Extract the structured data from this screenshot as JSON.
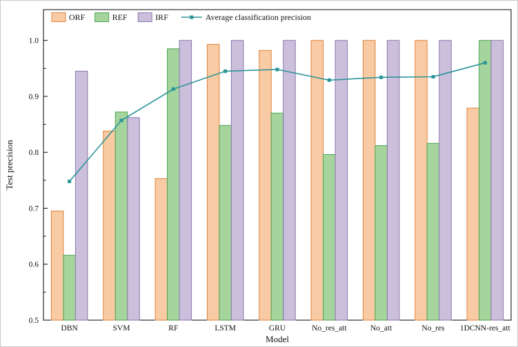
{
  "chart": {
    "xlabel": "Model",
    "ylabel": "Test precision"
  },
  "chart_data": {
    "type": "bar",
    "title": "",
    "xlabel": "Model",
    "ylabel": "Test precision",
    "ylim": [
      0.5,
      1.0
    ],
    "yticks": [
      0.5,
      0.6,
      0.7,
      0.8,
      0.9,
      1.0
    ],
    "ytick_labels": [
      "0.5",
      "0.6",
      "0.7",
      "0.8",
      "0.9",
      "1.0"
    ],
    "minor_tick_step": 0.05,
    "grid": false,
    "legend_position": "top-left",
    "categories": [
      "DBN",
      "SVM",
      "RF",
      "LSTM",
      "GRU",
      "No_res_att",
      "No_att",
      "No_res",
      "1DCNN-res_att"
    ],
    "series": [
      {
        "name": "ORF",
        "type": "bar",
        "fill": "#F8CBA4",
        "stroke": "#E0823D",
        "values": [
          0.695,
          0.838,
          0.753,
          0.993,
          0.982,
          1.0,
          1.0,
          1.0,
          0.879
        ]
      },
      {
        "name": "REF",
        "type": "bar",
        "fill": "#A5D49C",
        "stroke": "#4BA356",
        "values": [
          0.616,
          0.872,
          0.985,
          0.848,
          0.87,
          0.796,
          0.812,
          0.816,
          1.0
        ]
      },
      {
        "name": "IRF",
        "type": "bar",
        "fill": "#CBBFDC",
        "stroke": "#8B76AE",
        "values": [
          0.945,
          0.862,
          1.0,
          1.0,
          1.0,
          1.0,
          1.0,
          1.0,
          1.0
        ]
      },
      {
        "name": "Average classification precision",
        "type": "line",
        "color": "#2B9598",
        "values": [
          0.748,
          0.857,
          0.913,
          0.945,
          0.948,
          0.929,
          0.934,
          0.935,
          0.96
        ]
      }
    ]
  }
}
